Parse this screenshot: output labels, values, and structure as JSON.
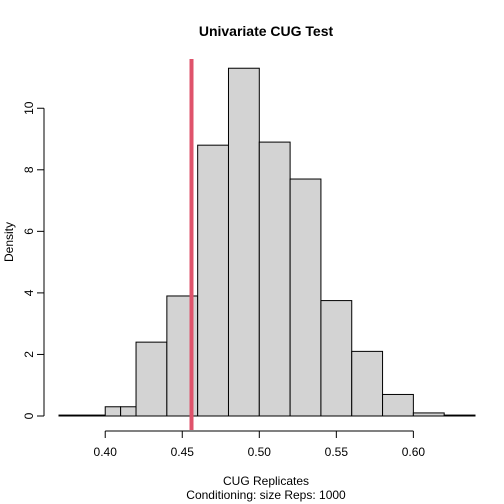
{
  "chart_data": {
    "type": "histogram",
    "title": "Univariate CUG Test",
    "xlabel": "CUG Replicates",
    "subtitle": "Conditioning: size Reps: 1000",
    "ylabel": "Density",
    "xlim": [
      0.37,
      0.64
    ],
    "ylim": [
      0,
      11.6
    ],
    "x_ticks": [
      "0.40",
      "0.45",
      "0.50",
      "0.55",
      "0.60"
    ],
    "x_tick_values": [
      0.4,
      0.45,
      0.5,
      0.55,
      0.6
    ],
    "y_ticks": [
      "0",
      "2",
      "4",
      "6",
      "8",
      "10"
    ],
    "y_tick_values": [
      0,
      2,
      4,
      6,
      8,
      10
    ],
    "bins": [
      {
        "start": 0.37,
        "end": 0.4,
        "density": 0.03
      },
      {
        "start": 0.4,
        "end": 0.41,
        "density": 0.3
      },
      {
        "start": 0.41,
        "end": 0.42,
        "density": 0.3
      },
      {
        "start": 0.42,
        "end": 0.44,
        "density": 2.4
      },
      {
        "start": 0.44,
        "end": 0.46,
        "density": 3.9
      },
      {
        "start": 0.46,
        "end": 0.48,
        "density": 8.8
      },
      {
        "start": 0.48,
        "end": 0.5,
        "density": 11.3
      },
      {
        "start": 0.5,
        "end": 0.52,
        "density": 8.9
      },
      {
        "start": 0.52,
        "end": 0.54,
        "density": 7.7
      },
      {
        "start": 0.54,
        "end": 0.56,
        "density": 3.75
      },
      {
        "start": 0.56,
        "end": 0.58,
        "density": 2.1
      },
      {
        "start": 0.58,
        "end": 0.6,
        "density": 0.7
      },
      {
        "start": 0.6,
        "end": 0.62,
        "density": 0.1
      },
      {
        "start": 0.62,
        "end": 0.64,
        "density": 0.03
      }
    ],
    "observed_value": 0.456,
    "observed_line_color": "#DF536B",
    "bar_fill": "#D3D3D3",
    "bar_stroke": "#000000",
    "grid": false
  }
}
